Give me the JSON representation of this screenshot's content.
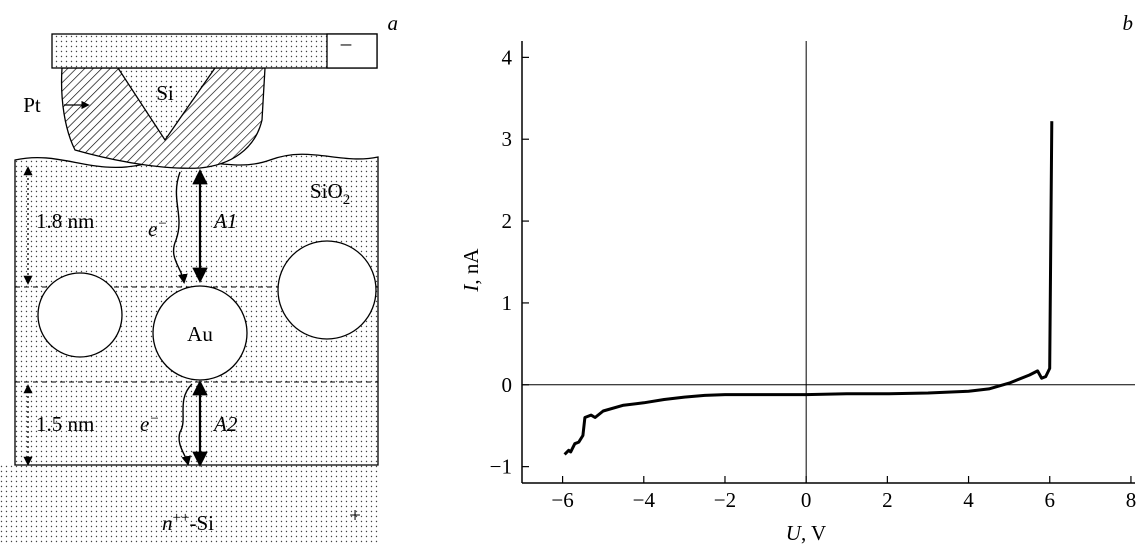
{
  "diagram": {
    "panel_label": "a",
    "labels": {
      "pt": "Pt",
      "si": "Si",
      "minus": "–",
      "sio2": {
        "base": "SiO",
        "sub": "2"
      },
      "d1": "1.8 nm",
      "e1": {
        "base": "e",
        "sup": "−"
      },
      "a1": "A1",
      "au": "Au",
      "d2": "1.5 nm",
      "e2": {
        "base": "e",
        "sup": "−"
      },
      "a2": "A2",
      "substrate": {
        "base": "n",
        "sup": "++",
        "rest": "-Si"
      },
      "plus": "+"
    }
  },
  "chart_data": {
    "type": "line",
    "panel_label": "b",
    "x_label": {
      "italic": "U",
      "rest": ", V"
    },
    "y_label": {
      "italic": "I",
      "rest": ", nA"
    },
    "xlim": [
      -7,
      8.1
    ],
    "ylim": [
      -1.2,
      4.2
    ],
    "xticks": [
      {
        "value": -6,
        "label": "−6"
      },
      {
        "value": -4,
        "label": "−4"
      },
      {
        "value": -2,
        "label": "−2"
      },
      0,
      2,
      4,
      6,
      8
    ],
    "yticks": [
      {
        "value": -1,
        "label": "−1"
      },
      0,
      1,
      2,
      3,
      4
    ],
    "zero_lines": true,
    "x": [
      -5.95,
      -5.85,
      -5.8,
      -5.7,
      -5.6,
      -5.5,
      -5.45,
      -5.3,
      -5.2,
      -5.0,
      -4.5,
      -4,
      -3.5,
      -3,
      -2.5,
      -2,
      -1,
      0,
      1,
      2,
      3,
      4,
      4.5,
      5,
      5.5,
      5.7,
      5.8,
      5.9,
      6.0,
      6.02,
      6.05
    ],
    "series": [
      {
        "color": "#000000",
        "values": [
          -0.85,
          -0.8,
          -0.82,
          -0.72,
          -0.7,
          -0.62,
          -0.4,
          -0.37,
          -0.4,
          -0.32,
          -0.25,
          -0.22,
          -0.18,
          -0.15,
          -0.13,
          -0.12,
          -0.12,
          -0.12,
          -0.11,
          -0.11,
          -0.1,
          -0.08,
          -0.05,
          0.02,
          0.12,
          0.17,
          0.08,
          0.1,
          0.2,
          1.5,
          3.22
        ]
      }
    ]
  }
}
